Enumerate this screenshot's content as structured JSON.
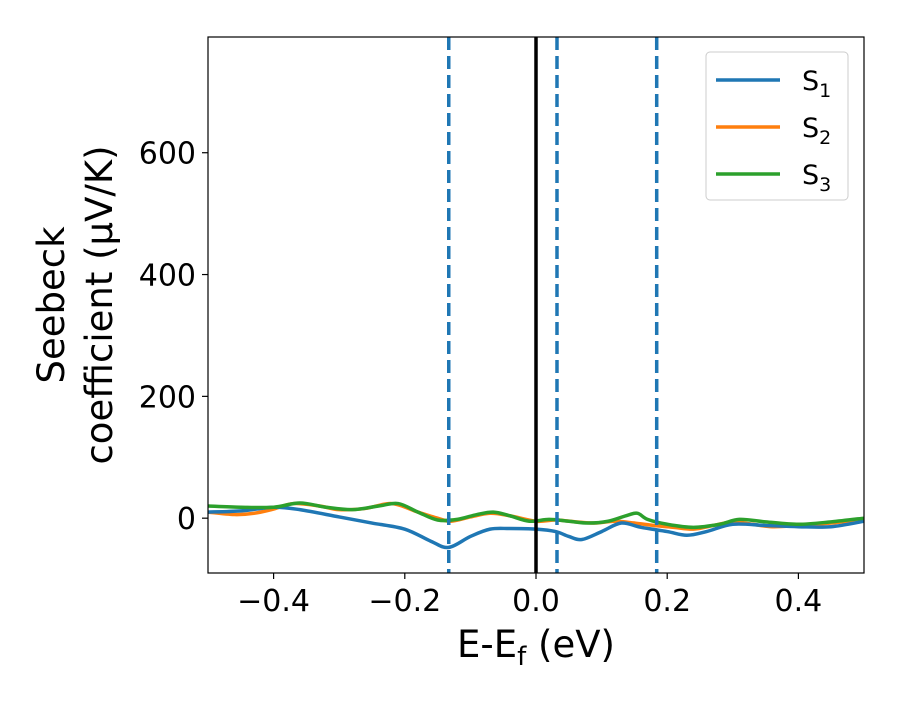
{
  "chart_data": {
    "type": "line",
    "xlabel_main": "E-E",
    "xlabel_sub": "f",
    "xlabel_tail": " (eV)",
    "ylabel_line1": "Seebeck",
    "ylabel_line2": "coefficient  (μV/K)",
    "xlim": [
      -0.5,
      0.5
    ],
    "ylim": [
      -90,
      790
    ],
    "xticks": [
      -0.4,
      -0.2,
      0.0,
      0.2,
      0.4
    ],
    "xtick_labels": [
      "−0.4",
      "−0.2",
      "0.0",
      "0.2",
      "0.4"
    ],
    "yticks": [
      0,
      200,
      400,
      600
    ],
    "ytick_labels": [
      "0",
      "200",
      "400",
      "600"
    ],
    "grid": false,
    "legend_placement": "top-right",
    "reference_lines": [
      {
        "x": 0.0,
        "style": "solid",
        "color": "#000000"
      },
      {
        "x": -0.133,
        "style": "dashed",
        "color": "#1f77b4"
      },
      {
        "x": 0.032,
        "style": "dashed",
        "color": "#1f77b4"
      },
      {
        "x": 0.184,
        "style": "dashed",
        "color": "#1f77b4"
      }
    ],
    "series": [
      {
        "name": "S",
        "subscript": "1",
        "color": "#1f77b4",
        "x": [
          -0.5,
          -0.45,
          -0.4,
          -0.36,
          -0.3,
          -0.25,
          -0.2,
          -0.16,
          -0.133,
          -0.1,
          -0.07,
          -0.04,
          0.0,
          0.03,
          0.05,
          0.07,
          0.1,
          0.13,
          0.16,
          0.2,
          0.23,
          0.26,
          0.3,
          0.35,
          0.4,
          0.45,
          0.5
        ],
        "y": [
          10,
          12,
          18,
          14,
          2,
          -8,
          -18,
          -38,
          -48,
          -30,
          -18,
          -17,
          -18,
          -22,
          -30,
          -35,
          -22,
          -8,
          -15,
          -22,
          -28,
          -22,
          -10,
          -12,
          -14,
          -14,
          -5
        ]
      },
      {
        "name": "S",
        "subscript": "2",
        "color": "#ff7f0e",
        "x": [
          -0.5,
          -0.46,
          -0.43,
          -0.4,
          -0.37,
          -0.33,
          -0.3,
          -0.26,
          -0.22,
          -0.18,
          -0.15,
          -0.13,
          -0.1,
          -0.07,
          -0.04,
          0.0,
          0.03,
          0.06,
          0.09,
          0.12,
          0.15,
          0.18,
          0.21,
          0.24,
          0.27,
          0.3,
          0.33,
          0.36,
          0.4,
          0.45,
          0.5
        ],
        "y": [
          10,
          6,
          8,
          15,
          24,
          20,
          14,
          16,
          24,
          10,
          0,
          -5,
          2,
          8,
          4,
          -5,
          -3,
          -6,
          -8,
          -5,
          -8,
          -12,
          -15,
          -18,
          -12,
          -6,
          -10,
          -14,
          -12,
          -8,
          -2
        ]
      },
      {
        "name": "S",
        "subscript": "3",
        "color": "#2ca02c",
        "x": [
          -0.5,
          -0.45,
          -0.4,
          -0.36,
          -0.32,
          -0.28,
          -0.24,
          -0.21,
          -0.18,
          -0.15,
          -0.12,
          -0.09,
          -0.065,
          -0.04,
          -0.01,
          0.02,
          0.05,
          0.08,
          0.11,
          0.14,
          0.155,
          0.17,
          0.2,
          0.24,
          0.28,
          0.31,
          0.35,
          0.4,
          0.45,
          0.5
        ],
        "y": [
          20,
          18,
          18,
          25,
          18,
          14,
          20,
          24,
          10,
          -3,
          -2,
          6,
          10,
          4,
          -5,
          -2,
          -5,
          -8,
          -5,
          5,
          8,
          -2,
          -10,
          -15,
          -10,
          -2,
          -6,
          -10,
          -6,
          0
        ]
      }
    ]
  }
}
